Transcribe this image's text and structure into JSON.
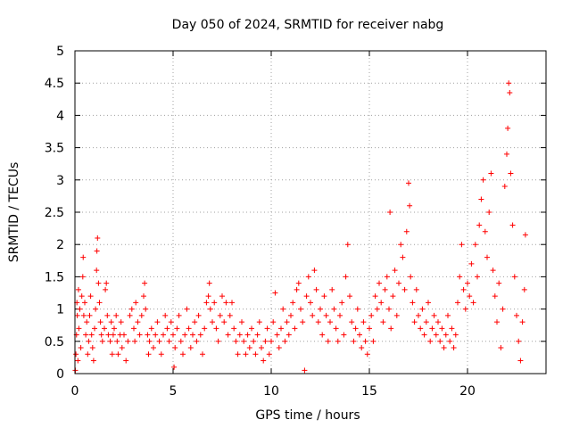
{
  "chart_data": {
    "type": "scatter",
    "title": "Day 050 of 2024, SRMTID for receiver nabg",
    "xlabel": "GPS time / hours",
    "ylabel": "SRMTID / TECUs",
    "xlim": [
      0,
      24
    ],
    "ylim": [
      0,
      5
    ],
    "x_ticks": [
      0,
      5,
      10,
      15,
      20
    ],
    "x_tick_labels": [
      "0",
      "5",
      "10",
      "15",
      "20"
    ],
    "y_ticks": [
      0,
      0.5,
      1,
      1.5,
      2,
      2.5,
      3,
      3.5,
      4,
      4.5,
      5
    ],
    "y_tick_labels": [
      "0",
      "0.5",
      "1",
      "1.5",
      "2",
      "2.5",
      "3",
      "3.5",
      "4",
      "4.5",
      "5"
    ],
    "grid": true,
    "marker": "+",
    "color": "#ff0000",
    "series": [
      {
        "name": "SRMTID",
        "points": [
          [
            0.02,
            0.05
          ],
          [
            0.05,
            0.3
          ],
          [
            0.08,
            0.6
          ],
          [
            0.1,
            1.1
          ],
          [
            0.12,
            0.9
          ],
          [
            0.15,
            0.2
          ],
          [
            0.18,
            1.3
          ],
          [
            0.2,
            0.7
          ],
          [
            0.25,
            1.0
          ],
          [
            0.3,
            0.4
          ],
          [
            0.35,
            1.2
          ],
          [
            0.4,
            1.5
          ],
          [
            0.42,
            1.8
          ],
          [
            0.45,
            0.9
          ],
          [
            0.5,
            1.1
          ],
          [
            0.55,
            0.6
          ],
          [
            0.6,
            0.8
          ],
          [
            0.65,
            0.3
          ],
          [
            0.7,
            0.5
          ],
          [
            0.75,
            0.9
          ],
          [
            0.8,
            1.2
          ],
          [
            0.85,
            0.6
          ],
          [
            0.9,
            0.4
          ],
          [
            0.95,
            0.2
          ],
          [
            1.0,
            0.7
          ],
          [
            1.05,
            1.0
          ],
          [
            1.1,
            1.6
          ],
          [
            1.12,
            1.9
          ],
          [
            1.15,
            2.1
          ],
          [
            1.2,
            1.4
          ],
          [
            1.25,
            1.1
          ],
          [
            1.3,
            0.8
          ],
          [
            1.35,
            0.6
          ],
          [
            1.4,
            0.5
          ],
          [
            1.5,
            0.7
          ],
          [
            1.55,
            1.3
          ],
          [
            1.6,
            1.4
          ],
          [
            1.65,
            0.9
          ],
          [
            1.7,
            0.6
          ],
          [
            1.8,
            0.5
          ],
          [
            1.85,
            0.8
          ],
          [
            1.9,
            0.3
          ],
          [
            1.95,
            0.6
          ],
          [
            2.0,
            0.7
          ],
          [
            2.1,
            0.9
          ],
          [
            2.15,
            0.5
          ],
          [
            2.2,
            0.3
          ],
          [
            2.3,
            0.6
          ],
          [
            2.35,
            0.8
          ],
          [
            2.4,
            0.4
          ],
          [
            2.5,
            0.6
          ],
          [
            2.6,
            0.2
          ],
          [
            2.7,
            0.5
          ],
          [
            2.8,
            0.9
          ],
          [
            2.9,
            1.0
          ],
          [
            3.0,
            0.7
          ],
          [
            3.05,
            0.5
          ],
          [
            3.1,
            1.1
          ],
          [
            3.2,
            0.8
          ],
          [
            3.3,
            0.6
          ],
          [
            3.4,
            0.9
          ],
          [
            3.5,
            1.2
          ],
          [
            3.55,
            1.4
          ],
          [
            3.6,
            1.0
          ],
          [
            3.7,
            0.6
          ],
          [
            3.75,
            0.3
          ],
          [
            3.8,
            0.5
          ],
          [
            3.9,
            0.7
          ],
          [
            4.0,
            0.4
          ],
          [
            4.1,
            0.6
          ],
          [
            4.2,
            0.8
          ],
          [
            4.3,
            0.5
          ],
          [
            4.4,
            0.3
          ],
          [
            4.5,
            0.6
          ],
          [
            4.6,
            0.9
          ],
          [
            4.7,
            0.7
          ],
          [
            4.8,
            0.5
          ],
          [
            4.9,
            0.8
          ],
          [
            5.0,
            0.6
          ],
          [
            5.05,
            0.1
          ],
          [
            5.1,
            0.4
          ],
          [
            5.2,
            0.7
          ],
          [
            5.3,
            0.9
          ],
          [
            5.4,
            0.5
          ],
          [
            5.5,
            0.3
          ],
          [
            5.6,
            0.6
          ],
          [
            5.7,
            1.0
          ],
          [
            5.8,
            0.7
          ],
          [
            5.9,
            0.4
          ],
          [
            6.0,
            0.6
          ],
          [
            6.1,
            0.8
          ],
          [
            6.2,
            0.5
          ],
          [
            6.3,
            0.9
          ],
          [
            6.4,
            0.6
          ],
          [
            6.5,
            0.3
          ],
          [
            6.6,
            0.7
          ],
          [
            6.7,
            1.1
          ],
          [
            6.8,
            1.2
          ],
          [
            6.85,
            1.4
          ],
          [
            6.9,
            1.0
          ],
          [
            7.0,
            0.8
          ],
          [
            7.1,
            1.1
          ],
          [
            7.2,
            0.7
          ],
          [
            7.3,
            0.5
          ],
          [
            7.4,
            0.9
          ],
          [
            7.5,
            1.2
          ],
          [
            7.6,
            0.8
          ],
          [
            7.7,
            1.1
          ],
          [
            7.8,
            0.6
          ],
          [
            7.9,
            0.9
          ],
          [
            8.0,
            1.1
          ],
          [
            8.1,
            0.7
          ],
          [
            8.2,
            0.5
          ],
          [
            8.3,
            0.3
          ],
          [
            8.4,
            0.6
          ],
          [
            8.5,
            0.8
          ],
          [
            8.6,
            0.5
          ],
          [
            8.7,
            0.3
          ],
          [
            8.8,
            0.6
          ],
          [
            8.9,
            0.4
          ],
          [
            9.0,
            0.7
          ],
          [
            9.1,
            0.5
          ],
          [
            9.2,
            0.3
          ],
          [
            9.3,
            0.6
          ],
          [
            9.4,
            0.8
          ],
          [
            9.5,
            0.4
          ],
          [
            9.6,
            0.2
          ],
          [
            9.7,
            0.5
          ],
          [
            9.8,
            0.7
          ],
          [
            9.9,
            0.3
          ],
          [
            10.0,
            0.5
          ],
          [
            10.1,
            0.8
          ],
          [
            10.2,
            1.25
          ],
          [
            10.3,
            0.6
          ],
          [
            10.4,
            0.4
          ],
          [
            10.5,
            0.7
          ],
          [
            10.6,
            1.0
          ],
          [
            10.7,
            0.5
          ],
          [
            10.8,
            0.8
          ],
          [
            10.9,
            0.6
          ],
          [
            11.0,
            0.9
          ],
          [
            11.1,
            1.1
          ],
          [
            11.2,
            0.7
          ],
          [
            11.3,
            1.3
          ],
          [
            11.4,
            1.4
          ],
          [
            11.5,
            1.0
          ],
          [
            11.6,
            0.8
          ],
          [
            11.7,
            0.05
          ],
          [
            11.8,
            1.2
          ],
          [
            11.9,
            1.5
          ],
          [
            12.0,
            1.1
          ],
          [
            12.1,
            0.9
          ],
          [
            12.2,
            1.6
          ],
          [
            12.3,
            1.3
          ],
          [
            12.4,
            0.8
          ],
          [
            12.5,
            1.0
          ],
          [
            12.6,
            0.6
          ],
          [
            12.7,
            1.2
          ],
          [
            12.8,
            0.9
          ],
          [
            12.9,
            0.5
          ],
          [
            13.0,
            0.8
          ],
          [
            13.1,
            1.3
          ],
          [
            13.2,
            1.0
          ],
          [
            13.3,
            0.7
          ],
          [
            13.4,
            0.5
          ],
          [
            13.5,
            0.9
          ],
          [
            13.6,
            1.1
          ],
          [
            13.7,
            0.6
          ],
          [
            13.8,
            1.5
          ],
          [
            13.9,
            2.0
          ],
          [
            14.0,
            1.2
          ],
          [
            14.1,
            0.8
          ],
          [
            14.2,
            0.5
          ],
          [
            14.3,
            0.7
          ],
          [
            14.4,
            1.0
          ],
          [
            14.5,
            0.6
          ],
          [
            14.6,
            0.4
          ],
          [
            14.7,
            0.8
          ],
          [
            14.8,
            0.5
          ],
          [
            14.9,
            0.3
          ],
          [
            15.0,
            0.7
          ],
          [
            15.1,
            0.9
          ],
          [
            15.2,
            0.5
          ],
          [
            15.3,
            1.2
          ],
          [
            15.4,
            1.0
          ],
          [
            15.5,
            1.4
          ],
          [
            15.6,
            1.1
          ],
          [
            15.7,
            0.8
          ],
          [
            15.8,
            1.3
          ],
          [
            15.9,
            1.5
          ],
          [
            16.0,
            1.0
          ],
          [
            16.05,
            2.5
          ],
          [
            16.1,
            0.7
          ],
          [
            16.2,
            1.2
          ],
          [
            16.3,
            1.6
          ],
          [
            16.4,
            0.9
          ],
          [
            16.5,
            1.4
          ],
          [
            16.6,
            2.0
          ],
          [
            16.7,
            1.8
          ],
          [
            16.8,
            1.3
          ],
          [
            16.9,
            2.2
          ],
          [
            17.0,
            2.95
          ],
          [
            17.05,
            2.6
          ],
          [
            17.1,
            1.5
          ],
          [
            17.2,
            1.1
          ],
          [
            17.3,
            0.8
          ],
          [
            17.4,
            1.3
          ],
          [
            17.5,
            0.9
          ],
          [
            17.6,
            0.7
          ],
          [
            17.7,
            1.0
          ],
          [
            17.8,
            0.6
          ],
          [
            17.9,
            0.8
          ],
          [
            18.0,
            1.1
          ],
          [
            18.1,
            0.5
          ],
          [
            18.2,
            0.7
          ],
          [
            18.3,
            0.9
          ],
          [
            18.4,
            0.6
          ],
          [
            18.5,
            0.8
          ],
          [
            18.6,
            0.5
          ],
          [
            18.7,
            0.7
          ],
          [
            18.8,
            0.4
          ],
          [
            18.9,
            0.6
          ],
          [
            19.0,
            0.9
          ],
          [
            19.1,
            0.5
          ],
          [
            19.2,
            0.7
          ],
          [
            19.3,
            0.4
          ],
          [
            19.4,
            0.6
          ],
          [
            19.5,
            1.1
          ],
          [
            19.6,
            1.5
          ],
          [
            19.7,
            2.0
          ],
          [
            19.8,
            1.3
          ],
          [
            19.9,
            1.0
          ],
          [
            20.0,
            1.4
          ],
          [
            20.1,
            1.2
          ],
          [
            20.2,
            1.7
          ],
          [
            20.3,
            1.1
          ],
          [
            20.4,
            2.0
          ],
          [
            20.5,
            1.5
          ],
          [
            20.6,
            2.3
          ],
          [
            20.7,
            2.7
          ],
          [
            20.8,
            3.0
          ],
          [
            20.9,
            2.2
          ],
          [
            21.0,
            1.8
          ],
          [
            21.1,
            2.5
          ],
          [
            21.2,
            3.1
          ],
          [
            21.3,
            1.6
          ],
          [
            21.4,
            1.2
          ],
          [
            21.5,
            0.8
          ],
          [
            21.6,
            1.4
          ],
          [
            21.7,
            0.4
          ],
          [
            21.8,
            1.0
          ],
          [
            21.9,
            2.9
          ],
          [
            22.0,
            3.4
          ],
          [
            22.05,
            3.8
          ],
          [
            22.1,
            4.5
          ],
          [
            22.15,
            4.35
          ],
          [
            22.2,
            3.1
          ],
          [
            22.3,
            2.3
          ],
          [
            22.4,
            1.5
          ],
          [
            22.5,
            0.9
          ],
          [
            22.6,
            0.5
          ],
          [
            22.7,
            0.2
          ],
          [
            22.8,
            0.8
          ],
          [
            22.9,
            1.3
          ],
          [
            22.95,
            2.15
          ]
        ]
      }
    ]
  }
}
